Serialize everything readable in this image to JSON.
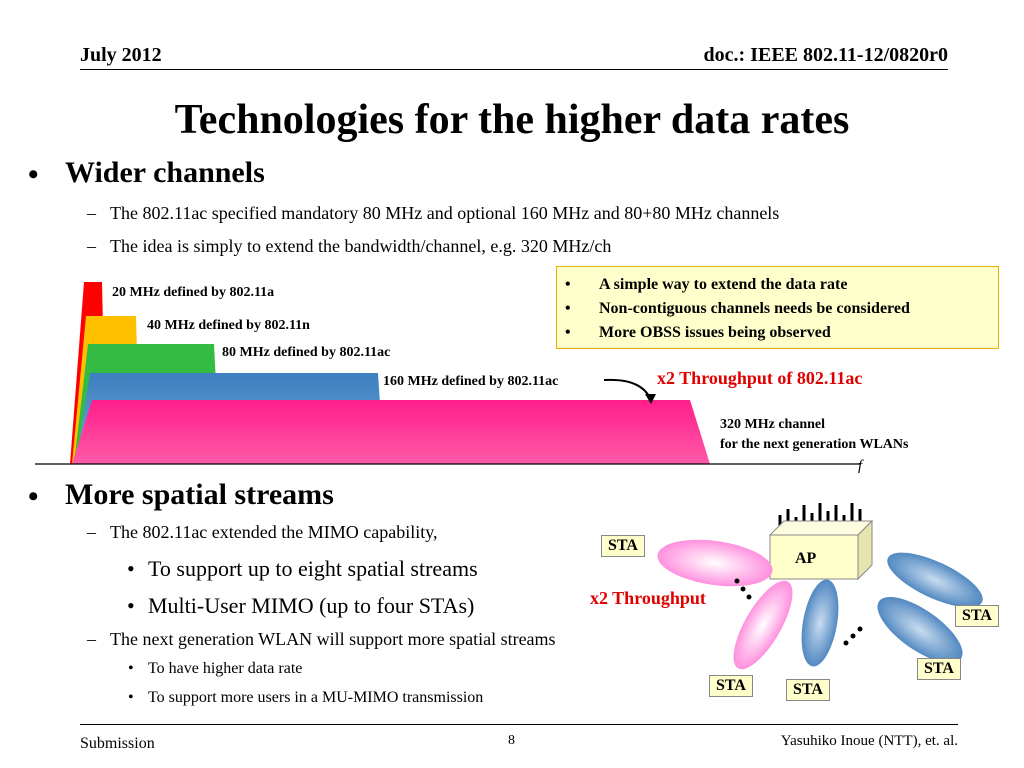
{
  "header": {
    "date": "July 2012",
    "doc": "doc.: IEEE 802.11-12/0820r0"
  },
  "title": "Technologies for the higher data rates",
  "section1": {
    "heading": "Wider channels",
    "items": [
      "The 802.11ac specified mandatory 80 MHz and optional 160 MHz and 80+80 MHz channels",
      "The idea is simply to extend the bandwidth/channel,  e.g. 320 MHz/ch"
    ]
  },
  "diagram": {
    "channels": [
      {
        "label": "20 MHz defined by 802.11a",
        "color": "#ff0000"
      },
      {
        "label": "40 MHz defined by 802.11n",
        "color": "#ffc000"
      },
      {
        "label": "80 MHz defined by 802.11ac",
        "color": "#33bb44"
      },
      {
        "label": "160 MHz defined by 802.11ac",
        "color": "#3d7fbf"
      },
      {
        "label": "320 MHz channel",
        "label2": "for the next generation WLANs",
        "color": "#ff1e8c"
      }
    ],
    "throughput_label": "x2 Throughput of 802.11ac",
    "axis_label": "f"
  },
  "note": {
    "items": [
      "A simple way to extend the data rate",
      "Non-contiguous channels needs be considered",
      "More OBSS issues being observed"
    ]
  },
  "section2": {
    "heading": "More spatial streams",
    "item1": "The 802.11ac extended the MIMO capability,",
    "subitems1": [
      "To support up to eight spatial streams",
      "Multi-User MIMO (up to four STAs)"
    ],
    "item2": "The next generation WLAN will support more spatial streams",
    "subitems2": [
      "To have higher data rate",
      "To support more users in a MU-MIMO transmission"
    ]
  },
  "mimo": {
    "ap_label": "AP",
    "sta_label": "STA",
    "throughput_label": "x2 Throughput",
    "ellipsis": "…"
  },
  "footer": {
    "left": "Submission",
    "page": "8",
    "right": "Yasuhiko Inoue (NTT), et. al."
  }
}
